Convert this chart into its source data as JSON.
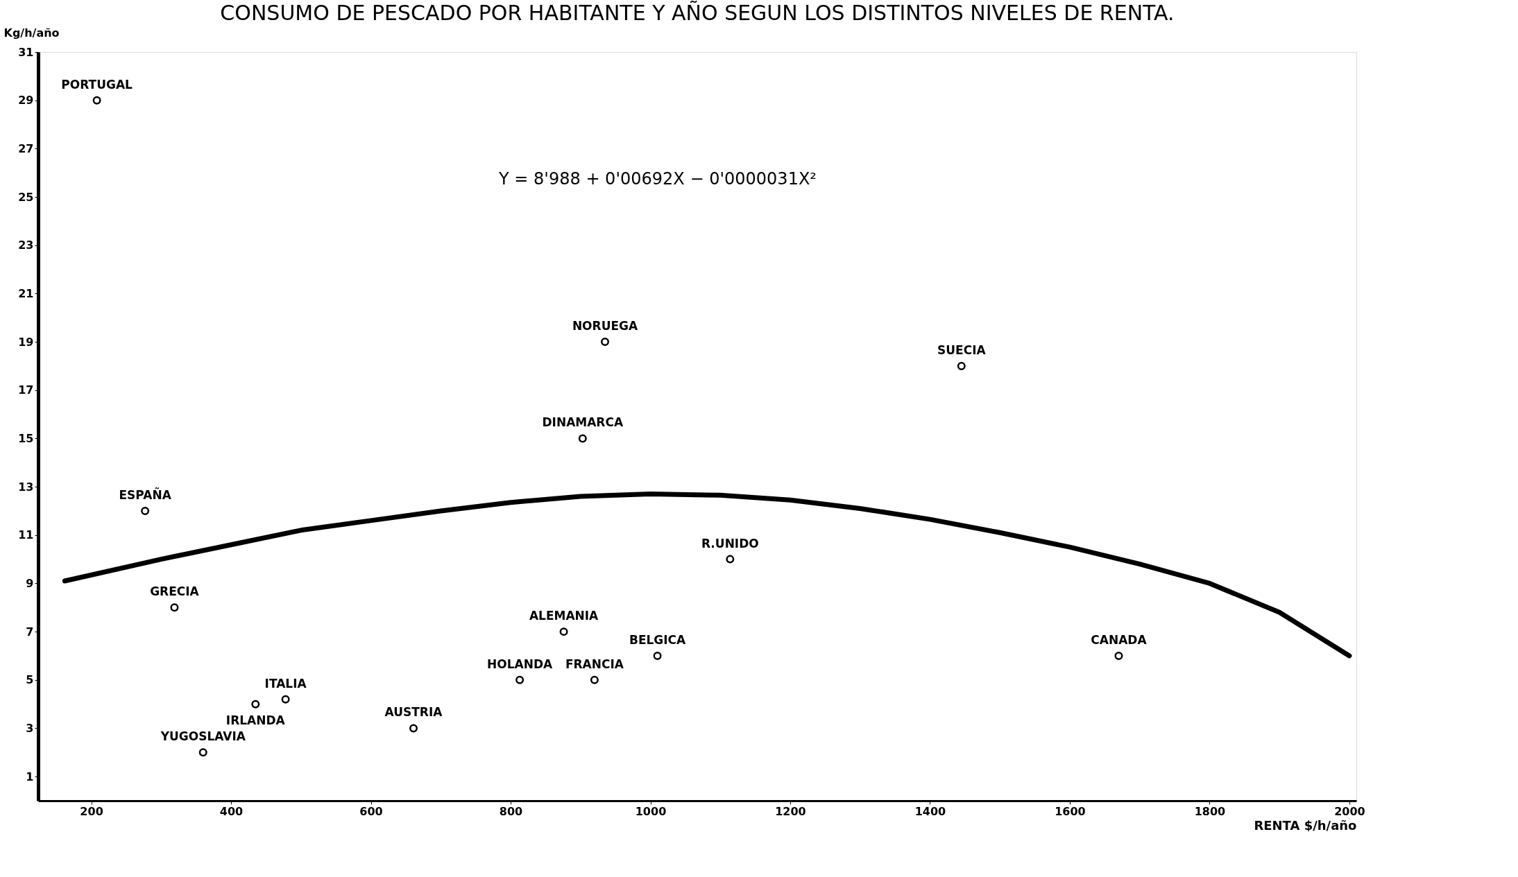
{
  "chart_data": {
    "type": "scatter",
    "title": "CONSUMO DE PESCADO POR HABITANTE Y AÑO SEGUN LOS DISTINTOS NIVELES DE RENTA.",
    "xlabel": "RENTA $/h/año",
    "ylabel": "Kg/h/año",
    "xlim": [
      124,
      2010
    ],
    "xticks": [
      200,
      400,
      600,
      800,
      1000,
      1200,
      1400,
      1600,
      1800,
      2000
    ],
    "ylim": [
      0,
      31
    ],
    "yticks": [
      1,
      3,
      5,
      7,
      9,
      11,
      13,
      15,
      17,
      19,
      21,
      23,
      25,
      27,
      29,
      31
    ],
    "marker": "circle",
    "series": [
      {
        "color": "#000000",
        "x": [
          208,
          277,
          319,
          360,
          435,
          478,
          661,
          813,
          876,
          920,
          903,
          935,
          1010,
          1114,
          1445,
          1670
        ],
        "values": [
          29,
          12,
          8,
          2,
          4,
          4.2,
          3,
          5,
          7,
          5,
          15,
          19,
          6,
          10,
          18,
          6
        ]
      },
      {
        "type": "line",
        "marker": "none",
        "color": "#000000",
        "x": [
          162,
          300,
          400,
          500,
          600,
          700,
          800,
          900,
          1000,
          1100,
          1200,
          1300,
          1400,
          1500,
          1600,
          1700,
          1800,
          1900,
          2000
        ],
        "values": [
          9.1,
          10.0,
          10.6,
          11.2,
          11.6,
          12.0,
          12.35,
          12.6,
          12.7,
          12.65,
          12.45,
          12.1,
          11.65,
          11.1,
          10.5,
          9.8,
          9.0,
          7.8,
          6.0
        ]
      }
    ],
    "annotations": [
      "Y = 8'988 + 0'00692X − 0'0000031X²",
      {
        "text": "PORTUGAL",
        "x": 208,
        "y": 29
      },
      {
        "text": "ESPAÑA",
        "x": 277,
        "y": 12
      },
      {
        "text": "GRECIA",
        "x": 319,
        "y": 8
      },
      {
        "text": "YUGOSLAVIA",
        "x": 360,
        "y": 2
      },
      {
        "text": "IRLANDA",
        "x": 435,
        "y": 4
      },
      {
        "text": "ITALIA",
        "x": 478,
        "y": 4.2
      },
      {
        "text": "AUSTRIA",
        "x": 661,
        "y": 3
      },
      {
        "text": "HOLANDA",
        "x": 813,
        "y": 5
      },
      {
        "text": "ALEMANIA",
        "x": 876,
        "y": 7
      },
      {
        "text": "FRANCIA",
        "x": 920,
        "y": 5
      },
      {
        "text": "DINAMARCA",
        "x": 903,
        "y": 15
      },
      {
        "text": "NORUEGA",
        "x": 935,
        "y": 19
      },
      {
        "text": "BELGICA",
        "x": 1010,
        "y": 6
      },
      {
        "text": "R.UNIDO",
        "x": 1114,
        "y": 10
      },
      {
        "text": "SUECIA",
        "x": 1445,
        "y": 18
      },
      {
        "text": "CANADA",
        "x": 1670,
        "y": 6
      }
    ]
  }
}
